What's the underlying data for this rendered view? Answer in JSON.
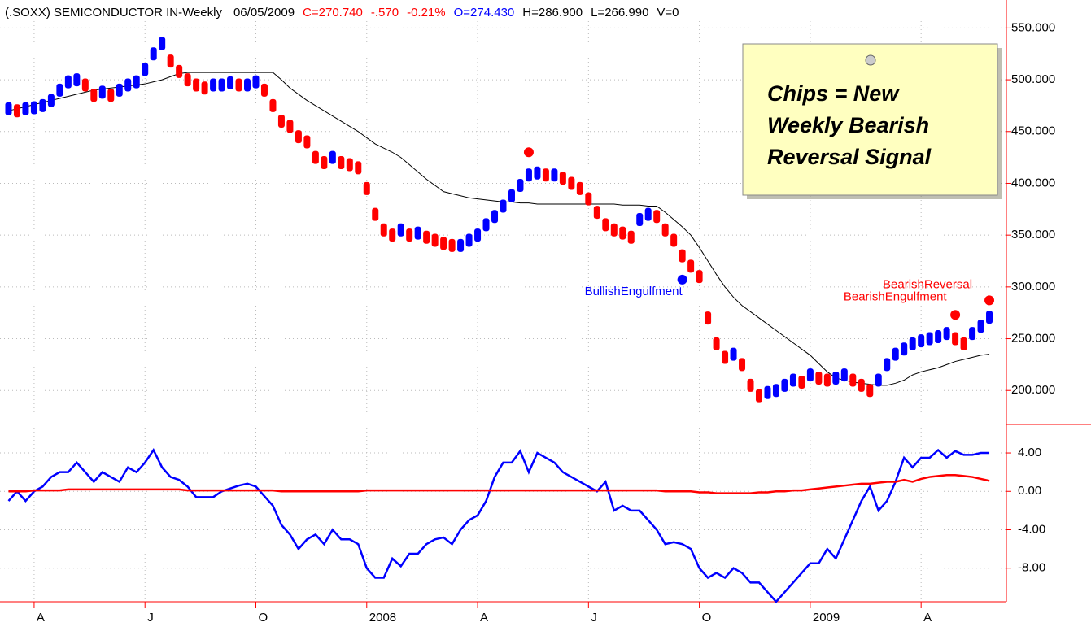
{
  "chart_data": {
    "type": "candle",
    "header": [
      "(.SOXX) SEMICONDUCTOR IN-Weekly",
      "06/05/2009",
      "C=270.740",
      "-.570",
      "-0.21%",
      "O=274.430",
      "H=286.900",
      "L=266.990",
      "V=0"
    ],
    "header_colors": [
      "#000000",
      "#000000",
      "#ff0000",
      "#ff0000",
      "#ff0000",
      "#0000ff",
      "#000000",
      "#000000",
      "#000000"
    ],
    "note": [
      "Chips = New",
      "Weekly Bearish",
      "Reversal Signal"
    ],
    "xlim": [
      -1,
      117
    ],
    "xticks": [
      {
        "value": 3,
        "label": "A"
      },
      {
        "value": 16,
        "label": "J"
      },
      {
        "value": 29,
        "label": "O"
      },
      {
        "value": 42,
        "label": "2008"
      },
      {
        "value": 55,
        "label": "A"
      },
      {
        "value": 68,
        "label": "J"
      },
      {
        "value": 81,
        "label": "O"
      },
      {
        "value": 94,
        "label": "2009"
      },
      {
        "value": 107,
        "label": "A"
      }
    ],
    "ylim": [
      168,
      577
    ],
    "yticks": [
      {
        "value": 200,
        "label": "200.000"
      },
      {
        "value": 250,
        "label": "250.000"
      },
      {
        "value": 300,
        "label": "300.000"
      },
      {
        "value": 350,
        "label": "350.000"
      },
      {
        "value": 400,
        "label": "400.000"
      },
      {
        "value": 450,
        "label": "450.000"
      },
      {
        "value": 500,
        "label": "500.000"
      },
      {
        "value": 550,
        "label": "550.000"
      }
    ],
    "up_color": "#0000ff",
    "down_color": "#ff0000",
    "close": [
      472,
      470,
      472,
      473,
      475,
      480,
      490,
      498,
      500,
      495,
      485,
      488,
      485,
      490,
      495,
      498,
      510,
      525,
      535,
      518,
      508,
      500,
      495,
      492,
      495,
      495,
      497,
      495,
      495,
      498,
      490,
      475,
      460,
      455,
      445,
      440,
      425,
      420,
      425,
      420,
      418,
      415,
      395,
      370,
      355,
      350,
      355,
      350,
      352,
      348,
      345,
      342,
      340,
      340,
      345,
      350,
      360,
      368,
      378,
      388,
      398,
      408,
      410,
      408,
      408,
      405,
      400,
      395,
      385,
      372,
      360,
      355,
      352,
      348,
      365,
      370,
      368,
      355,
      345,
      330,
      320,
      310,
      270,
      245,
      232,
      235,
      225,
      205,
      195,
      198,
      200,
      205,
      210,
      208,
      215,
      212,
      210,
      212,
      215,
      210,
      205,
      200,
      210,
      225,
      235,
      240,
      245,
      248,
      250,
      252,
      255,
      250,
      245,
      255,
      262,
      270.74
    ],
    "ma": [
      470,
      472,
      474,
      476,
      478,
      480,
      482,
      484,
      486,
      488,
      490,
      491,
      492,
      493,
      494,
      495,
      496,
      498,
      500,
      503,
      506,
      507,
      507,
      507,
      507,
      507,
      507,
      507,
      507,
      507,
      507,
      507,
      500,
      492,
      486,
      480,
      475,
      470,
      465,
      460,
      455,
      450,
      444,
      438,
      434,
      430,
      425,
      418,
      411,
      404,
      398,
      392,
      390,
      388,
      386,
      385,
      384,
      383,
      382,
      382,
      381,
      381,
      380,
      380,
      380,
      380,
      380,
      380,
      380,
      380,
      380,
      380,
      379,
      379,
      379,
      378,
      378,
      372,
      365,
      358,
      350,
      338,
      325,
      312,
      300,
      290,
      282,
      276,
      270,
      264,
      258,
      252,
      246,
      240,
      234,
      226,
      218,
      212,
      210,
      208,
      207,
      206,
      205,
      205,
      207,
      210,
      215,
      218,
      220,
      222,
      225,
      228,
      230,
      232,
      234,
      235
    ],
    "ma_color": "#000000",
    "signals": [
      {
        "x": 61,
        "y": 430,
        "color": "#ff0000"
      },
      {
        "x": 79,
        "y": 307,
        "color": "#0000ff"
      },
      {
        "x": 111,
        "y": 273,
        "color": "#ff0000"
      },
      {
        "x": 115,
        "y": 287,
        "color": "#ff0000"
      }
    ],
    "annotations": [
      {
        "text": "BullishEngulfment",
        "x": 79,
        "y": 295,
        "color": "#0000ff"
      },
      {
        "text": "BearishReversal",
        "x": 113,
        "y": 302,
        "color": "#ff0000"
      },
      {
        "text": "BearishEngulfment",
        "x": 110,
        "y": 290,
        "color": "#ff0000"
      }
    ],
    "y2lim": [
      -11.5,
      6.8
    ],
    "y2ticks": [
      {
        "value": 4,
        "label": "4.00"
      },
      {
        "value": 0,
        "label": "0.00"
      },
      {
        "value": -4,
        "label": "-4.00"
      },
      {
        "value": -8,
        "label": "-8.00"
      }
    ],
    "series": [
      {
        "color": "#0000ff",
        "axis": "y2",
        "values": [
          -1,
          0,
          -1,
          0,
          0.5,
          1.5,
          2,
          2,
          3,
          2,
          1,
          2,
          1.5,
          1,
          2.5,
          2,
          3,
          4.3,
          2.5,
          1.5,
          1.2,
          0.5,
          -0.6,
          -0.6,
          -0.6,
          0,
          0.3,
          0.6,
          0.8,
          0.5,
          -0.5,
          -1.5,
          -3.5,
          -4.5,
          -6,
          -5,
          -4.5,
          -5.5,
          -4,
          -5,
          -5,
          -5.5,
          -8,
          -9,
          -9,
          -7,
          -7.8,
          -6.5,
          -6.5,
          -5.5,
          -5,
          -4.8,
          -5.5,
          -4,
          -3,
          -2.5,
          -1,
          1.5,
          3,
          3,
          4.2,
          2,
          4,
          3.5,
          3,
          2,
          1.5,
          1,
          0.5,
          0,
          1,
          -2,
          -1.5,
          -2,
          -2,
          -3,
          -4,
          -5.5,
          -5.3,
          -5.5,
          -6,
          -8,
          -9,
          -8.5,
          -9,
          -8,
          -8.5,
          -9.5,
          -9.5,
          -10.5,
          -11.5,
          -10.5,
          -9.5,
          -8.5,
          -7.5,
          -7.5,
          -6,
          -7,
          -5,
          -3,
          -1,
          0.5,
          -2,
          -1,
          1,
          3.5,
          2.5,
          3.5,
          3.5,
          4.3,
          3.5,
          4.2,
          3.8,
          3.8,
          4,
          4
        ]
      },
      {
        "color": "#ff0000",
        "axis": "y2",
        "values": [
          0,
          0,
          0,
          0.1,
          0.1,
          0.1,
          0.1,
          0.2,
          0.2,
          0.2,
          0.2,
          0.2,
          0.2,
          0.2,
          0.2,
          0.2,
          0.2,
          0.2,
          0.2,
          0.2,
          0.2,
          0.1,
          0.1,
          0.1,
          0.1,
          0.1,
          0.1,
          0.1,
          0.1,
          0.1,
          0.1,
          0.1,
          0,
          0,
          0,
          0,
          0,
          0,
          0,
          0,
          0,
          0,
          0.1,
          0.1,
          0.1,
          0.1,
          0.1,
          0.1,
          0.1,
          0.1,
          0.1,
          0.1,
          0.1,
          0.1,
          0.1,
          0.1,
          0.1,
          0.1,
          0.1,
          0.1,
          0.1,
          0.1,
          0.1,
          0.1,
          0.1,
          0.1,
          0.1,
          0.1,
          0.1,
          0.1,
          0.1,
          0.1,
          0.1,
          0.1,
          0.1,
          0.1,
          0.1,
          0,
          0,
          0,
          0,
          -0.1,
          -0.1,
          -0.2,
          -0.2,
          -0.2,
          -0.2,
          -0.2,
          -0.1,
          -0.1,
          0,
          0,
          0.1,
          0.1,
          0.2,
          0.3,
          0.4,
          0.5,
          0.6,
          0.7,
          0.8,
          0.8,
          0.9,
          1,
          1,
          1.2,
          1,
          1.3,
          1.5,
          1.6,
          1.7,
          1.7,
          1.6,
          1.5,
          1.3,
          1.1
        ]
      }
    ]
  }
}
